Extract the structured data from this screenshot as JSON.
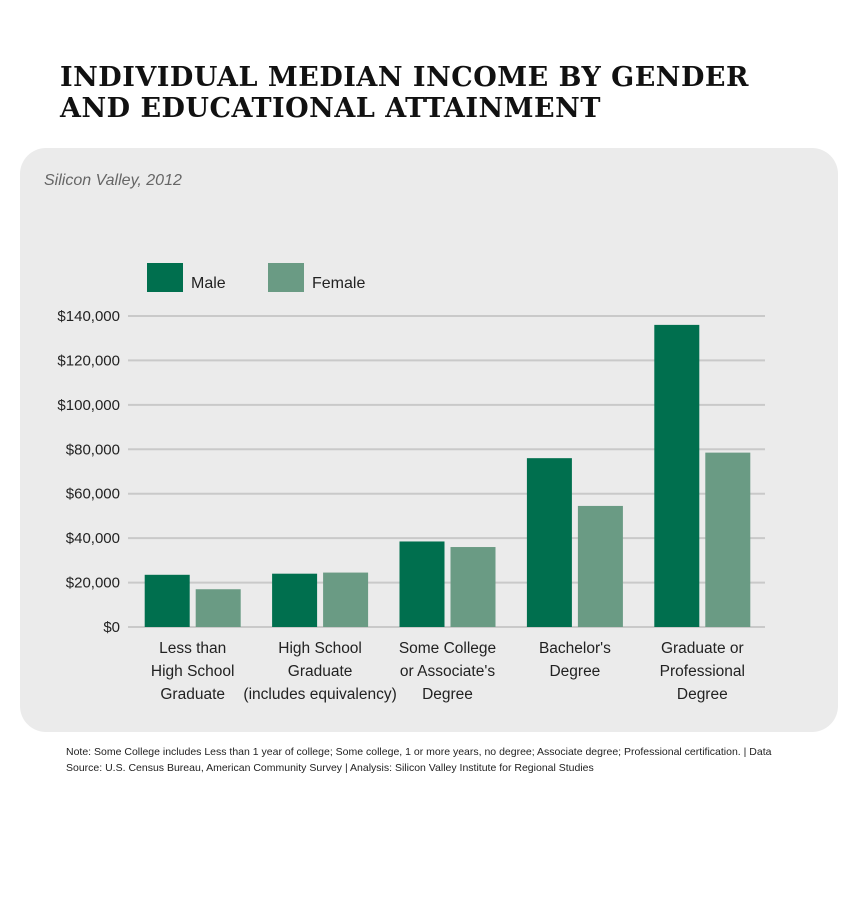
{
  "title": "INDIVIDUAL MEDIAN INCOME BY GENDER AND EDUCATIONAL ATTAINMENT",
  "subtitle": "Silicon Valley, 2012",
  "note": "Note: Some College includes Less than 1 year of college; Some college, 1 or more years, no degree; Associate degree; Professional certification. | Data Source: U.S. Census Bureau, American Community Survey | Analysis: Silicon Valley Institute for Regional Studies",
  "colors": {
    "male": "#006f4e",
    "female": "#6a9b84",
    "grid": "#c9c9c9",
    "panel": "#ebebeb"
  },
  "chart_data": {
    "type": "bar",
    "categories": [
      [
        "Less than",
        "High School",
        "Graduate"
      ],
      [
        "High School",
        "Graduate",
        "(includes equivalency)"
      ],
      [
        "Some College",
        "or Associate's",
        "Degree"
      ],
      [
        "Bachelor's",
        "Degree"
      ],
      [
        "Graduate or",
        "Professional",
        "Degree"
      ]
    ],
    "series": [
      {
        "name": "Male",
        "values": [
          23500,
          24000,
          38500,
          76000,
          136000
        ]
      },
      {
        "name": "Female",
        "values": [
          17000,
          24500,
          36000,
          54500,
          78500
        ]
      }
    ],
    "ylim": [
      0,
      140000
    ],
    "yticks": [
      0,
      20000,
      40000,
      60000,
      80000,
      100000,
      120000,
      140000
    ],
    "ytick_labels": [
      "$0",
      "$20,000",
      "$40,000",
      "$60,000",
      "$80,000",
      "$100,000",
      "$120,000",
      "$140,000"
    ],
    "grid": true,
    "legend_position": "top-left"
  }
}
